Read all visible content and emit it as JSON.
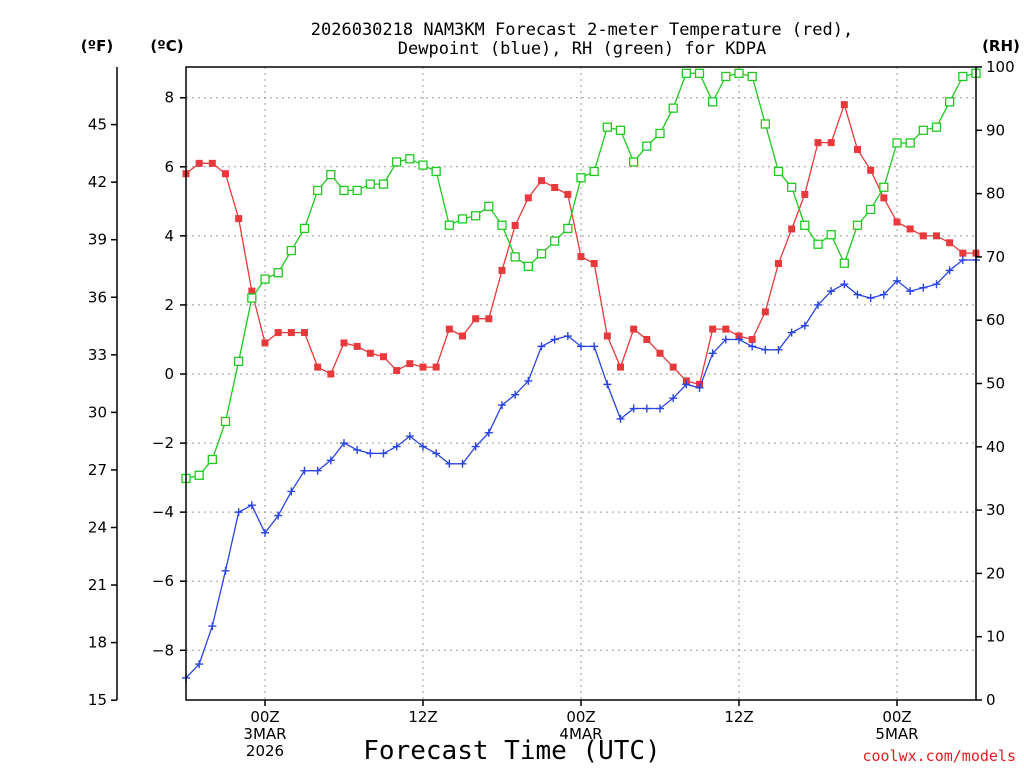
{
  "chart_data": {
    "type": "line",
    "title_line1": "2026030218 NAM3KM Forecast 2-meter Temperature (red),",
    "title_line2": "Dewpoint (blue), RH (green) for KDPA",
    "xlabel": "Forecast Time (UTC)",
    "credit": "coolwx.com/models",
    "unit_f": "(ºF)",
    "unit_c": "(ºC)",
    "unit_rh": "(RH)",
    "x_unit": "hours since 2026-03-02 18Z",
    "xlim": [
      0,
      60
    ],
    "ylim_c": [
      -9.44,
      8.89
    ],
    "ylim_rh": [
      0,
      100
    ],
    "yticks_c": [
      {
        "v": -8,
        "label": "−8"
      },
      {
        "v": -6,
        "label": "−6"
      },
      {
        "v": -4,
        "label": "−4"
      },
      {
        "v": -2,
        "label": "−2"
      },
      {
        "v": 0,
        "label": "0"
      },
      {
        "v": 2,
        "label": "2"
      },
      {
        "v": 4,
        "label": "4"
      },
      {
        "v": 6,
        "label": "6"
      },
      {
        "v": 8,
        "label": "8"
      }
    ],
    "yticks_f": [
      {
        "v": 15,
        "label": "15"
      },
      {
        "v": 18,
        "label": "18"
      },
      {
        "v": 21,
        "label": "21"
      },
      {
        "v": 24,
        "label": "24"
      },
      {
        "v": 27,
        "label": "27"
      },
      {
        "v": 30,
        "label": "30"
      },
      {
        "v": 33,
        "label": "33"
      },
      {
        "v": 36,
        "label": "36"
      },
      {
        "v": 39,
        "label": "39"
      },
      {
        "v": 42,
        "label": "42"
      },
      {
        "v": 45,
        "label": "45"
      }
    ],
    "yticks_rh": [
      {
        "v": 0,
        "label": "0"
      },
      {
        "v": 10,
        "label": "10"
      },
      {
        "v": 20,
        "label": "20"
      },
      {
        "v": 30,
        "label": "30"
      },
      {
        "v": 40,
        "label": "40"
      },
      {
        "v": 50,
        "label": "50"
      },
      {
        "v": 60,
        "label": "60"
      },
      {
        "v": 70,
        "label": "70"
      },
      {
        "v": 80,
        "label": "80"
      },
      {
        "v": 90,
        "label": "90"
      },
      {
        "v": 100,
        "label": "100"
      }
    ],
    "xticks": [
      {
        "v": 6,
        "lines": [
          "00Z",
          "3MAR",
          "2026"
        ]
      },
      {
        "v": 18,
        "lines": [
          "12Z"
        ]
      },
      {
        "v": 30,
        "lines": [
          "00Z",
          "4MAR"
        ]
      },
      {
        "v": 42,
        "lines": [
          "12Z"
        ]
      },
      {
        "v": 54,
        "lines": [
          "00Z",
          "5MAR"
        ]
      }
    ],
    "x": [
      0,
      1,
      2,
      3,
      4,
      5,
      6,
      7,
      8,
      9,
      10,
      11,
      12,
      13,
      14,
      15,
      16,
      17,
      18,
      19,
      20,
      21,
      22,
      23,
      24,
      25,
      26,
      27,
      28,
      29,
      30,
      31,
      32,
      33,
      34,
      35,
      36,
      37,
      38,
      39,
      40,
      41,
      42,
      43,
      44,
      45,
      46,
      47,
      48,
      49,
      50,
      51,
      52,
      53,
      54,
      55,
      56,
      57,
      58,
      59,
      60
    ],
    "series": [
      {
        "name": "2-meter Temperature",
        "unit": "°C",
        "color": "#e8393c",
        "marker": "filled-square",
        "values": [
          5.8,
          6.1,
          6.1,
          5.8,
          4.5,
          2.4,
          0.9,
          1.2,
          1.2,
          1.2,
          0.2,
          0.0,
          0.9,
          0.8,
          0.6,
          0.5,
          0.1,
          0.3,
          0.2,
          0.2,
          1.3,
          1.1,
          1.6,
          1.6,
          3.0,
          4.3,
          5.1,
          5.6,
          5.4,
          5.2,
          3.4,
          3.2,
          1.1,
          0.2,
          1.3,
          1.0,
          0.6,
          0.2,
          -0.2,
          -0.3,
          1.3,
          1.3,
          1.1,
          1.0,
          1.8,
          3.2,
          4.2,
          5.2,
          6.7,
          6.7,
          7.8,
          6.5,
          5.9,
          5.1,
          4.4,
          4.2,
          4.0,
          4.0,
          3.8,
          3.5,
          3.5
        ]
      },
      {
        "name": "Dewpoint",
        "unit": "°C",
        "color": "#2b45e0",
        "marker": "plus",
        "values": [
          -8.8,
          -8.4,
          -7.3,
          -5.7,
          -4.0,
          -3.8,
          -4.6,
          -4.1,
          -3.4,
          -2.8,
          -2.8,
          -2.5,
          -2.0,
          -2.2,
          -2.3,
          -2.3,
          -2.1,
          -1.8,
          -2.1,
          -2.3,
          -2.6,
          -2.6,
          -2.1,
          -1.7,
          -0.9,
          -0.6,
          -0.2,
          0.8,
          1.0,
          1.1,
          0.8,
          0.8,
          -0.3,
          -1.3,
          -1.0,
          -1.0,
          -1.0,
          -0.7,
          -0.3,
          -0.4,
          0.6,
          1.0,
          1.0,
          0.8,
          0.7,
          0.7,
          1.2,
          1.4,
          2.0,
          2.4,
          2.6,
          2.3,
          2.2,
          2.3,
          2.7,
          2.4,
          2.5,
          2.6,
          3.0,
          3.3,
          3.3
        ]
      },
      {
        "name": "RH",
        "unit": "%",
        "color": "#20c820",
        "marker": "open-square",
        "values": [
          35,
          35.5,
          38,
          44,
          53.5,
          63.5,
          66.5,
          67.5,
          71,
          74.5,
          80.5,
          83,
          80.5,
          80.5,
          81.5,
          81.5,
          85,
          85.5,
          84.5,
          83.5,
          75,
          76,
          76.5,
          78,
          75,
          70,
          68.5,
          70.5,
          72.5,
          74.5,
          82.5,
          83.5,
          90.5,
          90,
          85,
          87.5,
          89.5,
          93.5,
          99,
          99,
          94.5,
          98.5,
          99,
          98.5,
          91,
          83.5,
          81,
          75,
          72,
          73.5,
          69,
          75,
          77.5,
          81,
          88,
          88,
          90,
          90.5,
          94.5,
          98.5,
          99
        ]
      }
    ]
  }
}
